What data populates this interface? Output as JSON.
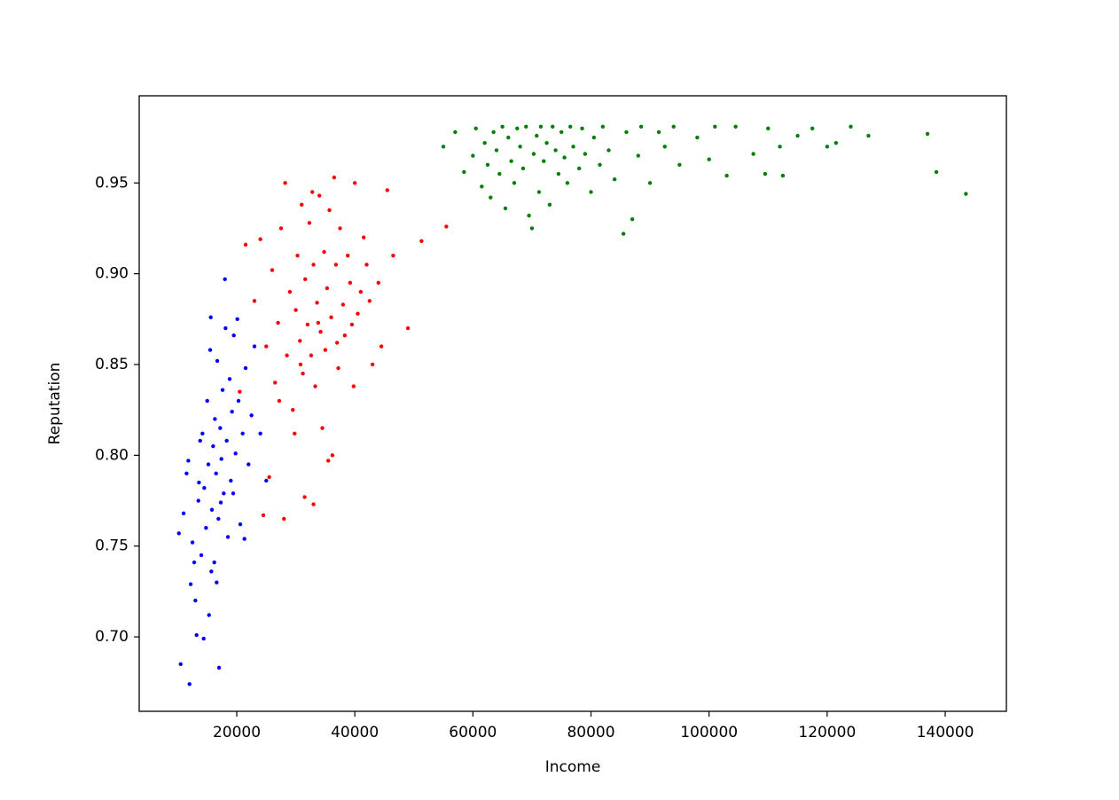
{
  "chart_data": {
    "type": "scatter",
    "x_label": "Income",
    "y_label": "Reputation",
    "xlim": [
      3480,
      150360
    ],
    "ylim": [
      0.659,
      0.998
    ],
    "xticks": [
      20000,
      40000,
      60000,
      80000,
      100000,
      120000,
      140000
    ],
    "yticks": [
      {
        "value": 0.7,
        "label": "0.70"
      },
      0.75,
      {
        "value": 0.8,
        "label": "0.80"
      },
      0.85,
      {
        "value": 0.9,
        "label": "0.90"
      },
      0.95
    ],
    "grid": false,
    "series": [
      {
        "color": "#0000ff",
        "x": [
          10500,
          12000,
          17000,
          18000,
          10200,
          11000,
          11500,
          12200,
          12500,
          13000,
          13200,
          13500,
          13800,
          14000,
          14200,
          14500,
          14800,
          15000,
          15200,
          15300,
          15500,
          15600,
          15800,
          16000,
          16200,
          16300,
          16500,
          16700,
          16900,
          17200,
          17400,
          17600,
          17800,
          18100,
          18300,
          18500,
          18800,
          19000,
          19200,
          19500,
          19800,
          20100,
          20300,
          20600,
          21000,
          21300,
          21500,
          22000,
          22500,
          23000,
          24000,
          25000,
          14400,
          15700,
          13600,
          16600,
          12800,
          17300,
          19400,
          11800
        ],
        "values": [
          0.685,
          0.674,
          0.683,
          0.897,
          0.757,
          0.768,
          0.79,
          0.729,
          0.752,
          0.72,
          0.701,
          0.775,
          0.808,
          0.745,
          0.812,
          0.782,
          0.76,
          0.83,
          0.795,
          0.712,
          0.858,
          0.876,
          0.77,
          0.805,
          0.741,
          0.82,
          0.79,
          0.852,
          0.765,
          0.815,
          0.798,
          0.836,
          0.779,
          0.87,
          0.808,
          0.755,
          0.842,
          0.786,
          0.824,
          0.866,
          0.801,
          0.875,
          0.83,
          0.762,
          0.812,
          0.754,
          0.848,
          0.795,
          0.822,
          0.86,
          0.812,
          0.786,
          0.699,
          0.736,
          0.785,
          0.73,
          0.741,
          0.774,
          0.779,
          0.797
        ]
      },
      {
        "color": "#ff0000",
        "x": [
          24500,
          28000,
          31500,
          33000,
          51300,
          55500,
          49000,
          20500,
          21500,
          23000,
          24000,
          25000,
          25500,
          26000,
          26500,
          27000,
          27500,
          28200,
          28500,
          29000,
          29500,
          30000,
          30300,
          30700,
          31000,
          31200,
          31600,
          32000,
          32300,
          32600,
          33000,
          33300,
          33600,
          34000,
          34200,
          34500,
          34800,
          35000,
          35300,
          35700,
          36000,
          36200,
          36500,
          36800,
          37200,
          37500,
          38000,
          38300,
          38800,
          39200,
          39800,
          40000,
          40500,
          41000,
          41500,
          42000,
          42500,
          43000,
          44000,
          44500,
          45500,
          46500,
          35500,
          29800,
          32800,
          27200,
          30800,
          33800,
          37000,
          39500
        ],
        "values": [
          0.767,
          0.765,
          0.777,
          0.773,
          0.918,
          0.926,
          0.87,
          0.835,
          0.916,
          0.885,
          0.919,
          0.86,
          0.788,
          0.902,
          0.84,
          0.873,
          0.925,
          0.95,
          0.855,
          0.89,
          0.825,
          0.88,
          0.91,
          0.863,
          0.938,
          0.845,
          0.897,
          0.872,
          0.928,
          0.855,
          0.905,
          0.838,
          0.884,
          0.943,
          0.868,
          0.815,
          0.912,
          0.858,
          0.892,
          0.935,
          0.876,
          0.8,
          0.953,
          0.905,
          0.848,
          0.925,
          0.883,
          0.866,
          0.91,
          0.895,
          0.838,
          0.95,
          0.878,
          0.89,
          0.92,
          0.905,
          0.885,
          0.85,
          0.895,
          0.86,
          0.946,
          0.91,
          0.797,
          0.812,
          0.945,
          0.83,
          0.85,
          0.873,
          0.862,
          0.872
        ]
      },
      {
        "color": "#008000",
        "x": [
          55000,
          57000,
          58500,
          60000,
          60500,
          61500,
          62000,
          62500,
          63000,
          63500,
          64000,
          64500,
          65000,
          65500,
          66000,
          66500,
          67000,
          67500,
          68000,
          68500,
          69000,
          69500,
          70000,
          70300,
          70800,
          71200,
          71500,
          72000,
          72500,
          73000,
          73500,
          74000,
          74500,
          75000,
          75500,
          76000,
          76500,
          77000,
          78000,
          78500,
          79000,
          80000,
          80500,
          81500,
          82000,
          83000,
          84000,
          85500,
          86000,
          87000,
          88000,
          88500,
          90000,
          91500,
          92500,
          94000,
          95000,
          98000,
          100000,
          101000,
          103000,
          104500,
          107500,
          109500,
          110000,
          112000,
          112500,
          115000,
          117500,
          120000,
          121500,
          124000,
          127000,
          137000,
          138500,
          143500
        ],
        "values": [
          0.97,
          0.978,
          0.956,
          0.965,
          0.98,
          0.948,
          0.972,
          0.96,
          0.942,
          0.978,
          0.968,
          0.955,
          0.981,
          0.936,
          0.975,
          0.962,
          0.95,
          0.98,
          0.97,
          0.958,
          0.981,
          0.932,
          0.925,
          0.966,
          0.976,
          0.945,
          0.981,
          0.962,
          0.972,
          0.938,
          0.981,
          0.968,
          0.955,
          0.978,
          0.964,
          0.95,
          0.981,
          0.97,
          0.958,
          0.98,
          0.966,
          0.945,
          0.975,
          0.96,
          0.981,
          0.968,
          0.952,
          0.922,
          0.978,
          0.93,
          0.965,
          0.981,
          0.95,
          0.978,
          0.97,
          0.981,
          0.96,
          0.975,
          0.963,
          0.981,
          0.954,
          0.981,
          0.966,
          0.955,
          0.98,
          0.97,
          0.954,
          0.976,
          0.98,
          0.97,
          0.972,
          0.981,
          0.976,
          0.977,
          0.956,
          0.944
        ]
      }
    ]
  }
}
